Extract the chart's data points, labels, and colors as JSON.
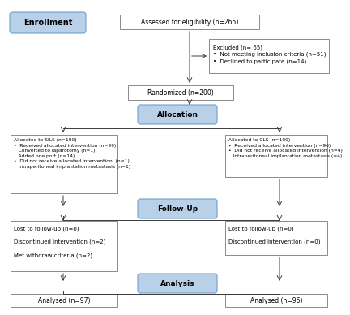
{
  "background_color": "#ffffff",
  "blue_box_color": "#b8d0e8",
  "blue_box_edge": "#6fa0c8",
  "white_box_edge": "#8a8a8a",
  "white_box_face": "#ffffff",
  "arrow_color": "#3a3a3a",
  "enrollment_label": "Enrollment",
  "allocation_label": "Allocation",
  "followup_label": "Follow-Up",
  "analysis_label": "Analysis",
  "assessed_text": "Assessed for eligibility (n=265)",
  "excluded_text": "Excluded (n= 65)\n•  Not meeting inclusion criteria (n=51)\n•  Declined to participate (n=14)",
  "randomized_text": "Randomized (n=200)",
  "sils_text": "Allocated to SILS (n=100)\n•  Received allocated intervention (n=99)\n   Converted to laparotomy (n=1)\n   Added one port (n=14)\n•  Did not receive allocated intervention  (n=1)\n   Intraperitoneal implantation metastasis (n=1)",
  "cls_text": "Allocated to CLS (n=100)\n•  Received allocated intervention (n=96)\n•  Did not receive allocated intervention (n=4)\n   Intraperitoneal implantation metastasis (=4)",
  "sils_followup_text": "Lost to follow-up (n=0)\n\nDiscontinued intervention (n=2)\n\nMet withdraw criteria (n=2)",
  "cls_followup_text": "Lost to follow-up (n=0)\n\nDiscontinued intervention (n=0)",
  "sils_analysis_text": "Analysed (n=97)",
  "cls_analysis_text": "Analysed (n=96)"
}
